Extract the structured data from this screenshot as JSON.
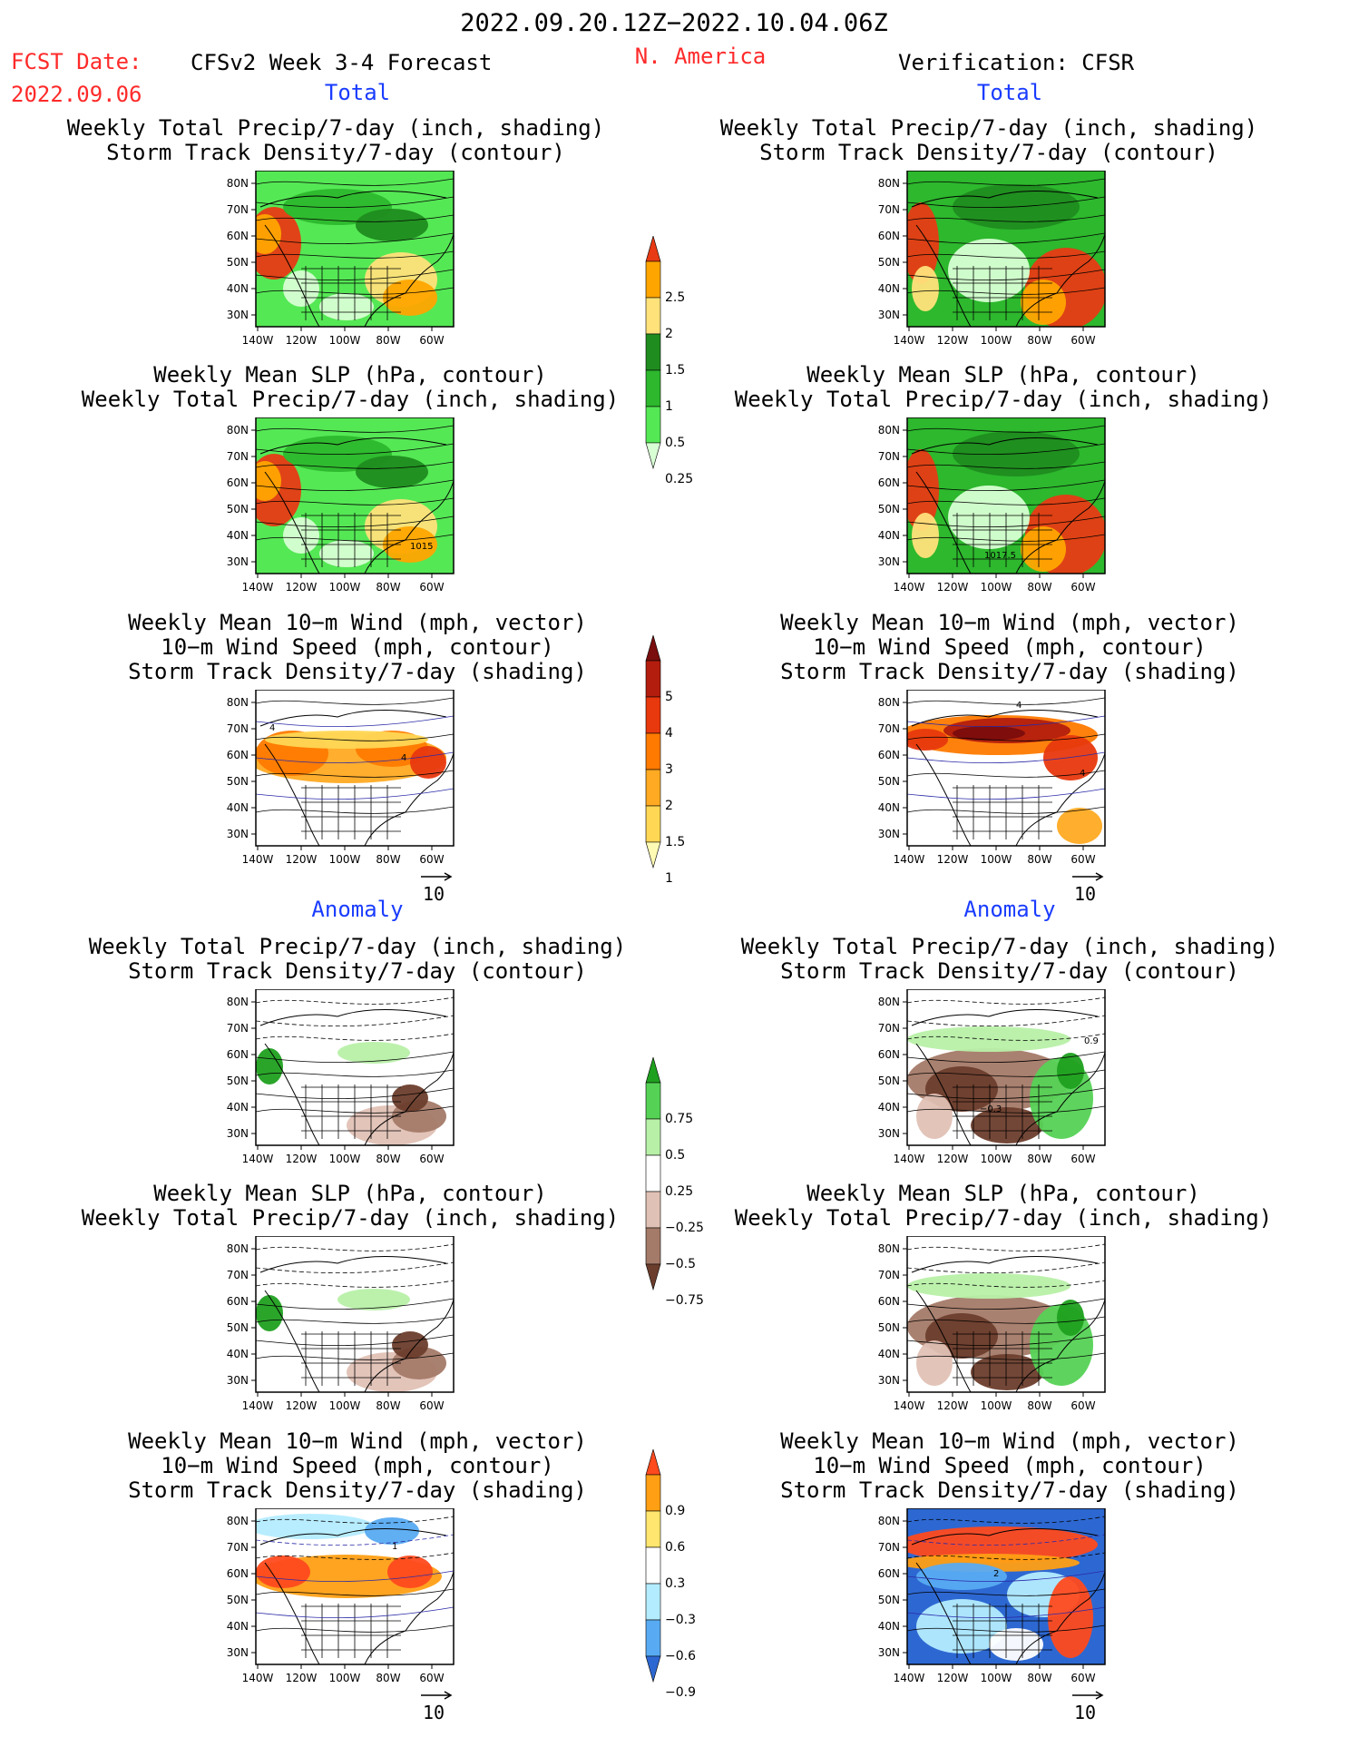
{
  "header": {
    "period": "2022.09.20.12Z−2022.10.04.06Z",
    "fcst_label": "FCST Date:",
    "fcst_date": "2022.09.06",
    "model_title": "CFSv2 Week 3-4 Forecast",
    "region": "N. America",
    "verification": "Verification: CFSR"
  },
  "sections": {
    "total": "Total",
    "anomaly": "Anomaly"
  },
  "panel_titles": {
    "precip": [
      "Weekly Total Precip/7-day (inch, shading)",
      "Storm Track Density/7-day (contour)"
    ],
    "slp": [
      "Weekly Mean SLP (hPa, contour)",
      "Weekly Total Precip/7-day (inch, shading)"
    ],
    "wind": [
      "Weekly Mean 10−m Wind (mph, vector)",
      "10−m Wind Speed (mph, contour)",
      "Storm Track Density/7-day (shading)"
    ]
  },
  "map_axes": {
    "lat_labels": [
      "80N",
      "70N",
      "60N",
      "50N",
      "40N",
      "30N"
    ],
    "lon_labels": [
      "140W",
      "120W",
      "100W",
      "80W",
      "60W"
    ]
  },
  "panel_labels": {
    "left_slp_total": "1015",
    "right_slp_total": "1017.5",
    "left_wind_total_a": "4",
    "left_wind_total_b": "4",
    "right_wind_total_a": "4",
    "right_wind_total_b": "4",
    "right_precip_anom_a": "0.9",
    "right_precip_anom_b": "−0.3",
    "left_wind_anom": "1",
    "right_wind_anom": "2"
  },
  "vector_scale": "10",
  "colorbars": {
    "precip_total": [
      "2.5",
      "2",
      "1.5",
      "1",
      "0.5",
      "0.25"
    ],
    "storm_total": [
      "5",
      "4",
      "3",
      "2",
      "1.5",
      "1"
    ],
    "precip_anom": [
      "0.75",
      "0.5",
      "0.25",
      "−0.25",
      "−0.5",
      "−0.75"
    ],
    "storm_anom": [
      "0.9",
      "0.6",
      "0.3",
      "−0.3",
      "−0.6",
      "−0.9"
    ]
  },
  "colors": {
    "precip_total": [
      "#d8ffd4",
      "#55e855",
      "#2db82d",
      "#1f8c1f",
      "#ffe27a",
      "#ffa500",
      "#e83a14"
    ],
    "storm_total": [
      "#fffab4",
      "#ffd755",
      "#ffaa22",
      "#ff7a00",
      "#e8380e",
      "#b31d0d",
      "#7a0d0d"
    ],
    "precip_anom": [
      "#6b3d2c",
      "#a47a68",
      "#e0c1b5",
      "#ffffff",
      "#b8f0a8",
      "#55d255",
      "#1fa01f"
    ],
    "storm_anom": [
      "#2d68d2",
      "#58abf2",
      "#b4ecff",
      "#ffffff",
      "#ffe66e",
      "#ff9f14",
      "#ff4a1e"
    ],
    "header_red": "#ff2a2a",
    "header_blue": "#1a3cff"
  }
}
